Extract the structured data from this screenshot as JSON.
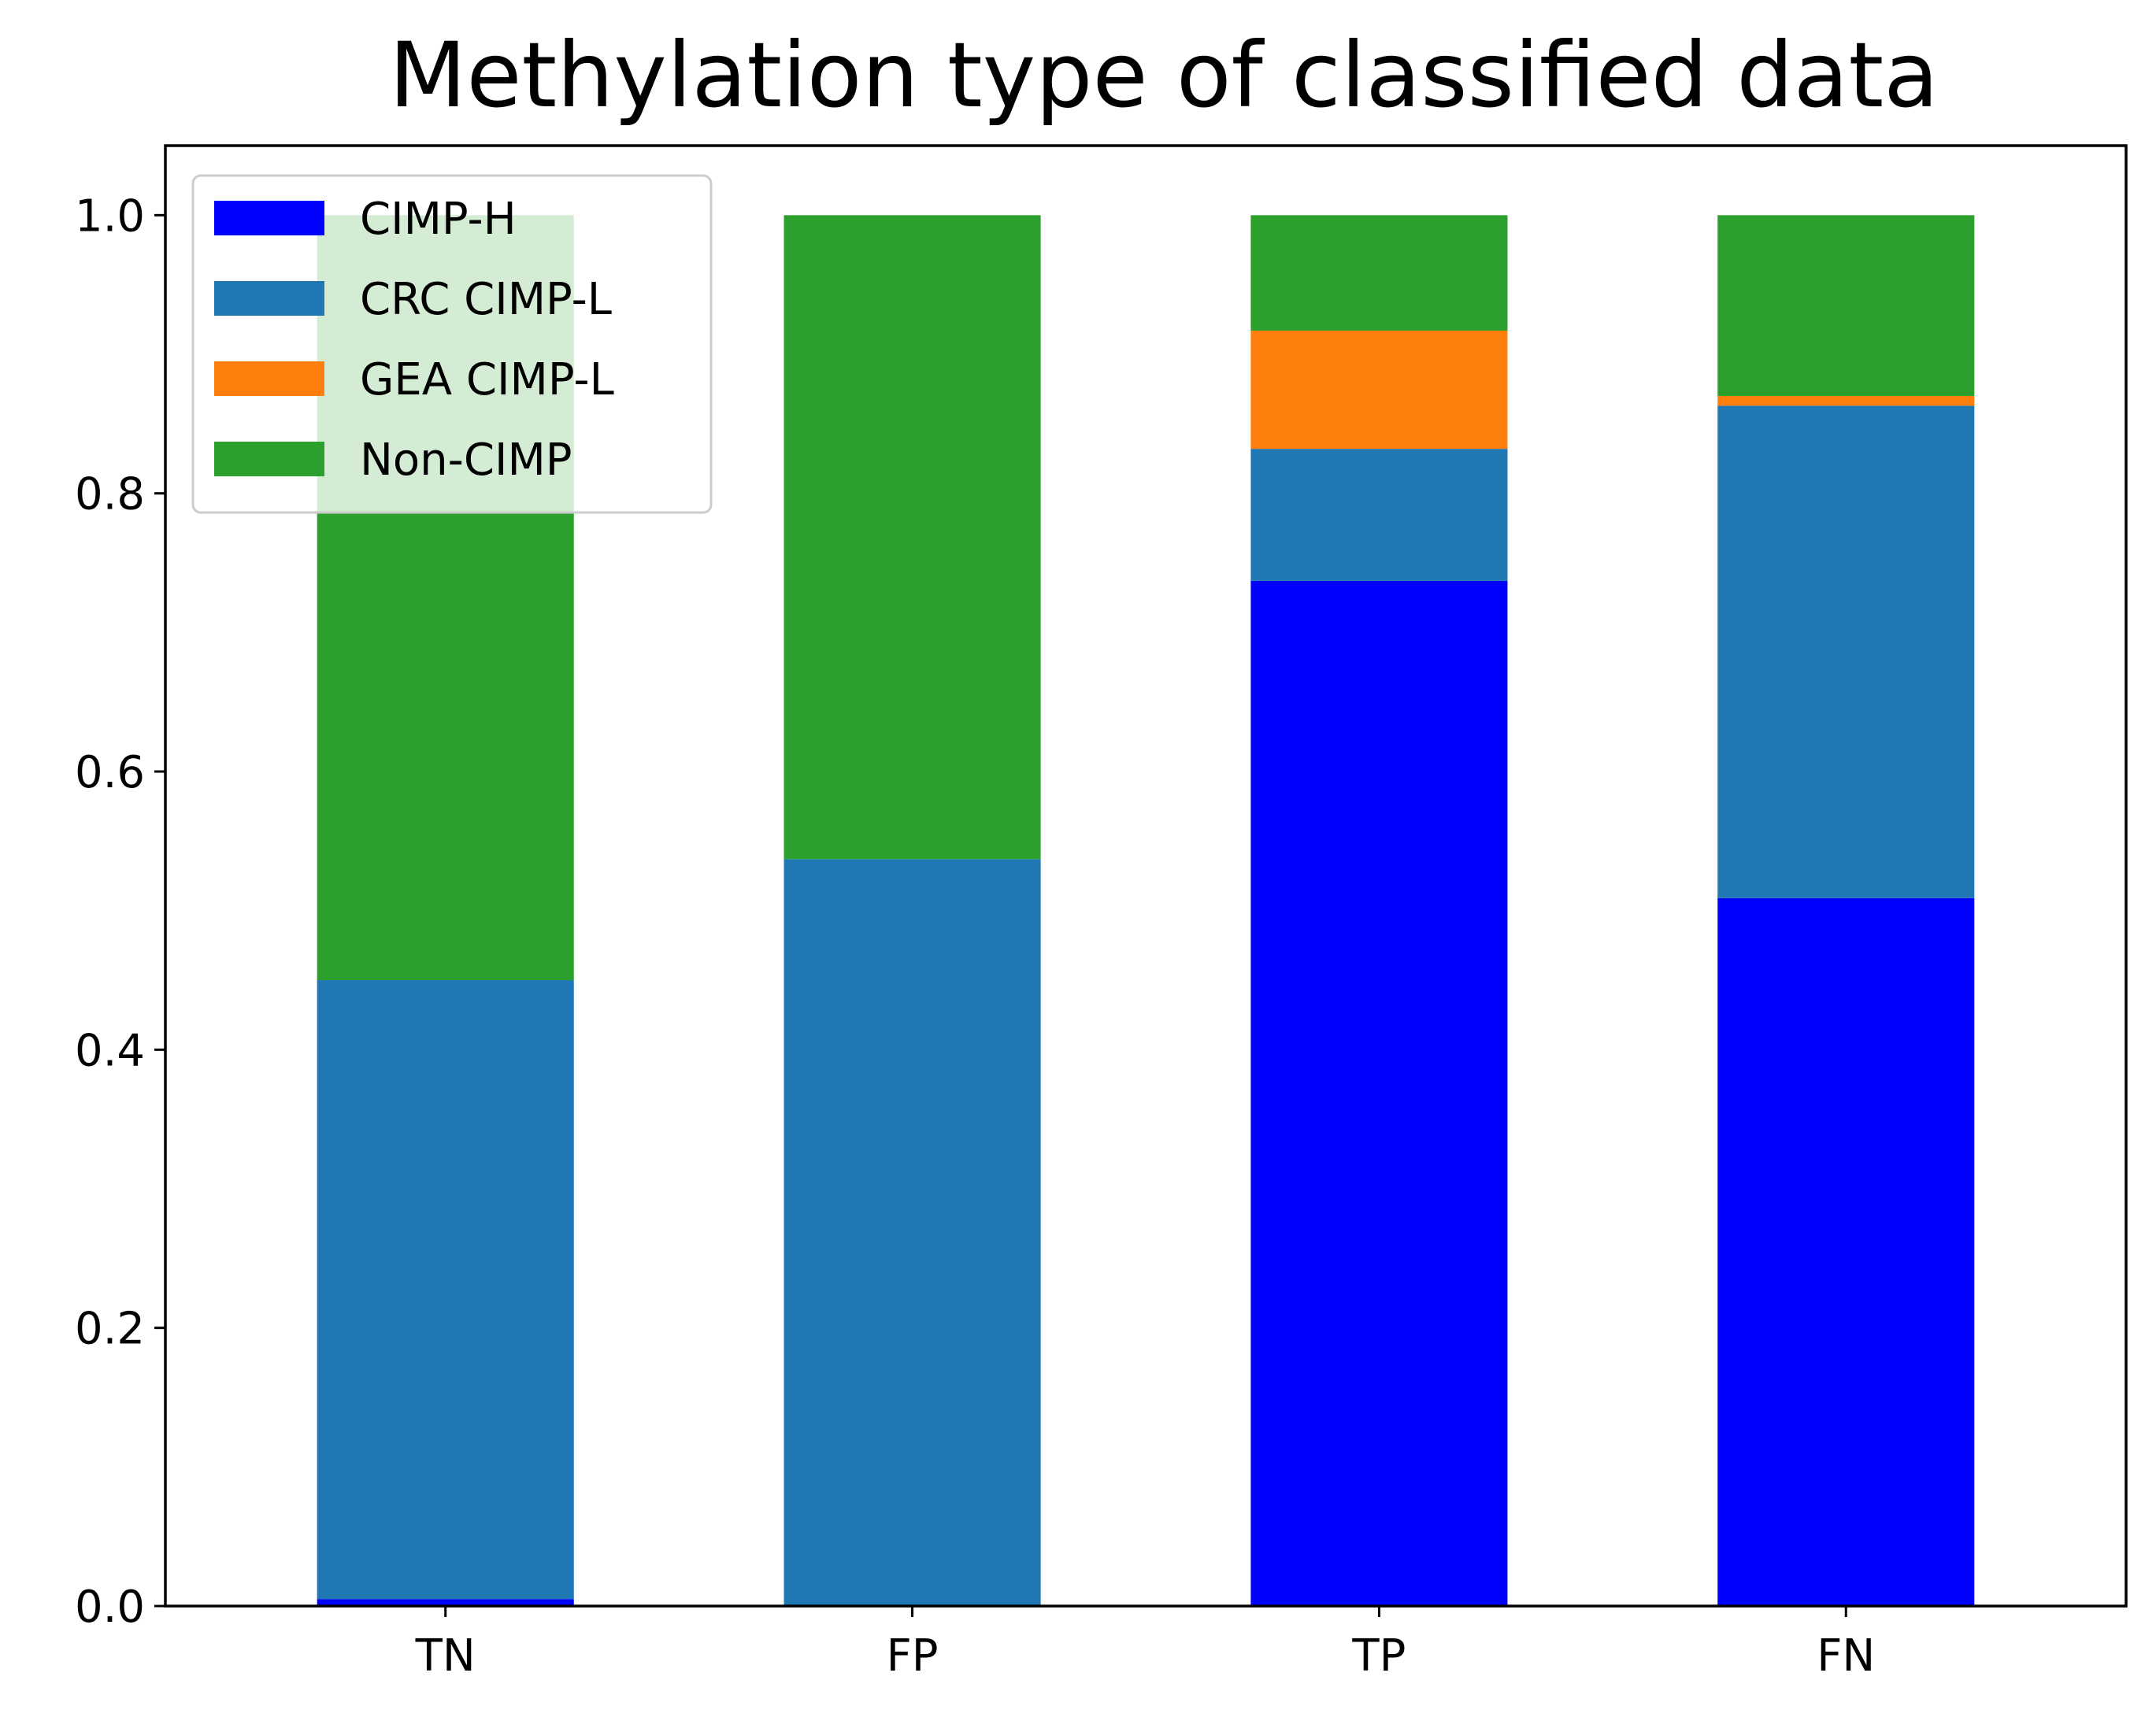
{
  "chart_data": {
    "type": "bar",
    "stacked": true,
    "title": "Methylation type of classified data",
    "xlabel": "",
    "ylabel": "",
    "categories": [
      "TN",
      "FP",
      "TP",
      "FN"
    ],
    "series": [
      {
        "name": "CIMP-H",
        "color": "#0000ff",
        "values": [
          0.005,
          0.0,
          0.737,
          0.509
        ]
      },
      {
        "name": "CRC CIMP-L",
        "color": "#1f77b4",
        "values": [
          0.445,
          0.537,
          0.095,
          0.354
        ]
      },
      {
        "name": "GEA CIMP-L",
        "color": "#ff7f0e",
        "values": [
          0.0,
          0.0,
          0.085,
          0.007
        ]
      },
      {
        "name": "Non-CIMP",
        "color": "#2ca02c",
        "values": [
          0.55,
          0.463,
          0.083,
          0.13
        ]
      }
    ],
    "ylim": [
      0,
      1.05
    ],
    "yticks": [
      "0.0",
      "0.2",
      "0.4",
      "0.6",
      "0.8",
      "1.0"
    ],
    "grid": false,
    "legend_position": "top-left"
  }
}
